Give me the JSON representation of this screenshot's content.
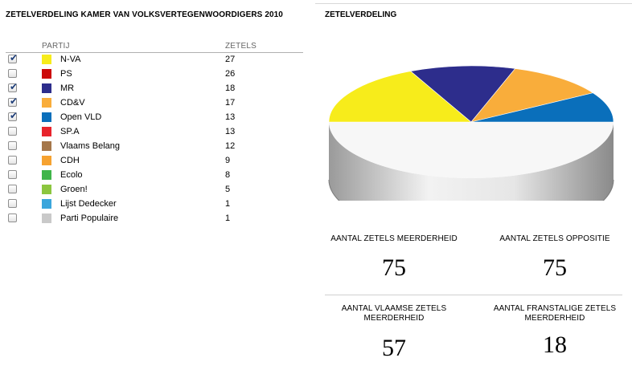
{
  "left": {
    "title": "ZETELVERDELING KAMER VAN VOLKSVERTEGENWOORDIGERS 2010",
    "col_party": "PARTIJ",
    "col_seats": "ZETELS",
    "parties": [
      {
        "name": "N-VA",
        "seats": "27",
        "checked": true,
        "color": "#f7ec1b"
      },
      {
        "name": "PS",
        "seats": "26",
        "checked": false,
        "color": "#cc0a0a"
      },
      {
        "name": "MR",
        "seats": "18",
        "checked": true,
        "color": "#2d2d8c"
      },
      {
        "name": "CD&V",
        "seats": "17",
        "checked": true,
        "color": "#f9ad3b"
      },
      {
        "name": "Open VLD",
        "seats": "13",
        "checked": true,
        "color": "#0a6fbb"
      },
      {
        "name": "SP.A",
        "seats": "13",
        "checked": false,
        "color": "#e8242c"
      },
      {
        "name": "Vlaams Belang",
        "seats": "12",
        "checked": false,
        "color": "#a5774a"
      },
      {
        "name": "CDH",
        "seats": "9",
        "checked": false,
        "color": "#f6a230"
      },
      {
        "name": "Ecolo",
        "seats": "8",
        "checked": false,
        "color": "#3fb54a"
      },
      {
        "name": "Groen!",
        "seats": "5",
        "checked": false,
        "color": "#8cc63f"
      },
      {
        "name": "Lijst Dedecker",
        "seats": "1",
        "checked": false,
        "color": "#3ba6dc"
      },
      {
        "name": "Parti Populaire",
        "seats": "1",
        "checked": false,
        "color": "#c9c9c9"
      }
    ]
  },
  "right": {
    "title": "ZETELVERDELING",
    "pie_remainder_color": "#f7f7f7",
    "stats": {
      "majority_label": "AANTAL ZETELS MEERDERHEID",
      "majority_value": "75",
      "opposition_label": "AANTAL ZETELS OPPOSITIE",
      "opposition_value": "75",
      "flemish_label": "AANTAL VLAAMSE ZETELS MEERDERHEID",
      "flemish_value": "57",
      "francophone_label": "AANTAL FRANSTALIGE ZETELS MEERDERHEID",
      "francophone_value": "18"
    }
  }
}
